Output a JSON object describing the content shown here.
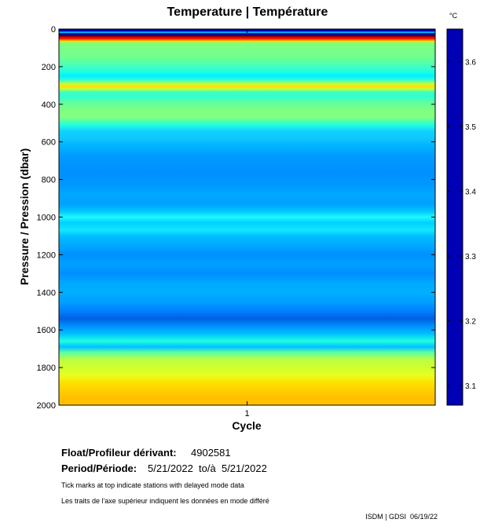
{
  "chart_data": {
    "type": "heatmap",
    "title": "Temperature | Température",
    "xlabel": "Cycle",
    "ylabel": "Pressure / Pression (dbar)",
    "x_ticks": [
      "1"
    ],
    "y_ticks": [
      "0",
      "200",
      "400",
      "600",
      "800",
      "1000",
      "1200",
      "1400",
      "1600",
      "1800",
      "2000"
    ],
    "y_range": [
      0,
      2000
    ],
    "colorbar": {
      "unit": "°C",
      "ticks": [
        "3.1",
        "3.2",
        "3.3",
        "3.4",
        "3.5",
        "3.6"
      ],
      "tick_values": [
        3.1,
        3.2,
        3.3,
        3.4,
        3.5,
        3.6
      ],
      "range": [
        3.07,
        3.65
      ]
    },
    "series": [
      {
        "name": "cycle 1",
        "profile": [
          {
            "p": 0,
            "c": "#000080"
          },
          {
            "p": 10,
            "c": "#0000c0"
          },
          {
            "p": 18,
            "c": "#00e0ff"
          },
          {
            "p": 24,
            "c": "#0000b0"
          },
          {
            "p": 30,
            "c": "#000090"
          },
          {
            "p": 34,
            "c": "#200070"
          },
          {
            "p": 37,
            "c": "#800000"
          },
          {
            "p": 43,
            "c": "#cc0000"
          },
          {
            "p": 52,
            "c": "#ff2000"
          },
          {
            "p": 60,
            "c": "#ffa000"
          },
          {
            "p": 66,
            "c": "#ffe000"
          },
          {
            "p": 74,
            "c": "#80ff80"
          },
          {
            "p": 150,
            "c": "#70ff90"
          },
          {
            "p": 200,
            "c": "#40ffc0"
          },
          {
            "p": 225,
            "c": "#20ffe0"
          },
          {
            "p": 250,
            "c": "#00f0ff"
          },
          {
            "p": 270,
            "c": "#30ffd0"
          },
          {
            "p": 290,
            "c": "#c0ff40"
          },
          {
            "p": 305,
            "c": "#ffe000"
          },
          {
            "p": 318,
            "c": "#c0ff40"
          },
          {
            "p": 335,
            "c": "#40ffc0"
          },
          {
            "p": 360,
            "c": "#30ffd0"
          },
          {
            "p": 390,
            "c": "#60ffa0"
          },
          {
            "p": 430,
            "c": "#80ff80"
          },
          {
            "p": 470,
            "c": "#80ff80"
          },
          {
            "p": 510,
            "c": "#20ffe0"
          },
          {
            "p": 545,
            "c": "#10d0ff"
          },
          {
            "p": 580,
            "c": "#10c8ff"
          },
          {
            "p": 620,
            "c": "#00b4ff"
          },
          {
            "p": 680,
            "c": "#009aff"
          },
          {
            "p": 760,
            "c": "#0090ff"
          },
          {
            "p": 830,
            "c": "#0098ff"
          },
          {
            "p": 880,
            "c": "#00a8ff"
          },
          {
            "p": 930,
            "c": "#00a0ff"
          },
          {
            "p": 970,
            "c": "#00c8ff"
          },
          {
            "p": 1000,
            "c": "#20f8ff"
          },
          {
            "p": 1030,
            "c": "#00d0ff"
          },
          {
            "p": 1070,
            "c": "#10e8ff"
          },
          {
            "p": 1100,
            "c": "#00c0ff"
          },
          {
            "p": 1150,
            "c": "#00a8ff"
          },
          {
            "p": 1200,
            "c": "#0090ff"
          },
          {
            "p": 1250,
            "c": "#00a0ff"
          },
          {
            "p": 1300,
            "c": "#0090ff"
          },
          {
            "p": 1350,
            "c": "#00a8ff"
          },
          {
            "p": 1400,
            "c": "#00b0ff"
          },
          {
            "p": 1450,
            "c": "#00a0ff"
          },
          {
            "p": 1500,
            "c": "#0080ff"
          },
          {
            "p": 1540,
            "c": "#0060e0"
          },
          {
            "p": 1580,
            "c": "#0090ff"
          },
          {
            "p": 1620,
            "c": "#00c0ff"
          },
          {
            "p": 1660,
            "c": "#20ffe0"
          },
          {
            "p": 1690,
            "c": "#00c0ff"
          },
          {
            "p": 1720,
            "c": "#60ffa0"
          },
          {
            "p": 1760,
            "c": "#c0ff40"
          },
          {
            "p": 1800,
            "c": "#d0ff30"
          },
          {
            "p": 1840,
            "c": "#e8ff20"
          },
          {
            "p": 1880,
            "c": "#ffe000"
          },
          {
            "p": 1920,
            "c": "#ffd000"
          },
          {
            "p": 1960,
            "c": "#ffc000"
          },
          {
            "p": 2000,
            "c": "#ffc000"
          }
        ]
      }
    ]
  },
  "footer": {
    "float_label": "Float/Profileur dérivant:",
    "float_value": "4902581",
    "period_label": "Period/Période:",
    "period_value": "5/21/2022  to/à  5/21/2022",
    "note_en": "Tick marks at top indicate stations with delayed mode data",
    "note_fr": "Les traits de l'axe supérieur indiquent les données en mode différé",
    "credit": "ISDM | GDSI  06/19/22"
  },
  "colors": {
    "colorbar": "#0000b4",
    "axis": "#000000"
  }
}
